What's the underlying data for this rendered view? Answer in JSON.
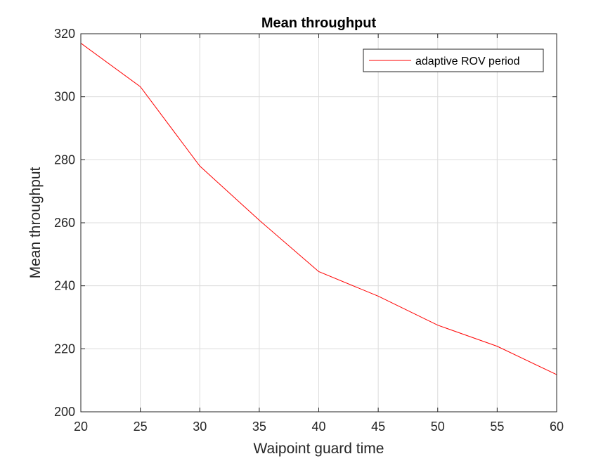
{
  "chart_data": {
    "type": "line",
    "title": "Mean throughput",
    "xlabel": "Waipoint guard time",
    "ylabel": "Mean throughput",
    "xlim": [
      20,
      60
    ],
    "ylim": [
      200,
      320
    ],
    "xticks": [
      20,
      25,
      30,
      35,
      40,
      45,
      50,
      55,
      60
    ],
    "yticks": [
      200,
      220,
      240,
      260,
      280,
      300,
      320
    ],
    "grid": true,
    "legend_position": "top-right",
    "series": [
      {
        "name": "adaptive ROV period",
        "color": "#ff0000",
        "x": [
          20,
          25,
          30,
          35,
          40,
          45,
          50,
          55,
          60
        ],
        "y": [
          317,
          303.2,
          278,
          260.8,
          244.5,
          236.7,
          227.5,
          220.8,
          211.8
        ]
      }
    ]
  }
}
